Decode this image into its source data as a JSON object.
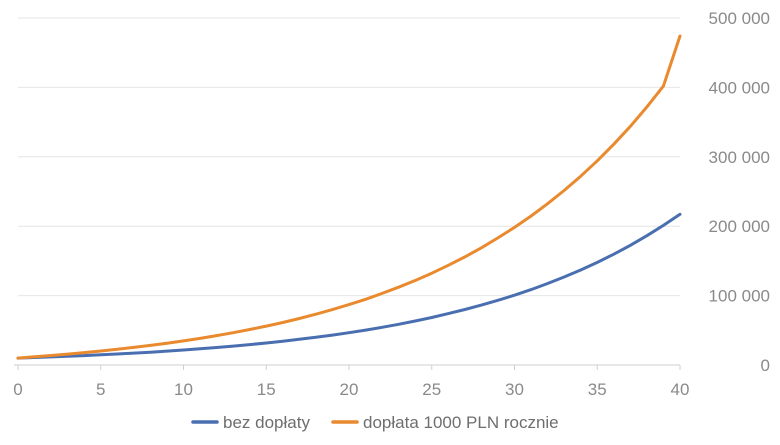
{
  "chart_data": {
    "type": "line",
    "x": [
      0,
      1,
      2,
      3,
      4,
      5,
      6,
      7,
      8,
      9,
      10,
      11,
      12,
      13,
      14,
      15,
      16,
      17,
      18,
      19,
      20,
      21,
      22,
      23,
      24,
      25,
      26,
      27,
      28,
      29,
      30,
      31,
      32,
      33,
      34,
      35,
      36,
      37,
      38,
      39,
      40
    ],
    "series": [
      {
        "name": "bez dopłaty",
        "color": "#4a6fb0",
        "values": [
          10000,
          10800,
          11700,
          12600,
          13600,
          14700,
          15900,
          17100,
          18500,
          20000,
          21600,
          23300,
          25200,
          27200,
          29400,
          31700,
          34300,
          37000,
          40000,
          43100,
          46600,
          50300,
          54300,
          58700,
          63400,
          68500,
          74000,
          79900,
          86300,
          93200,
          100600,
          108700,
          117400,
          126800,
          136900,
          147900,
          159700,
          172500,
          186300,
          201100,
          217200
        ]
      },
      {
        "name": "dopłata 1000 PLN rocznie",
        "color": "#e98a2e",
        "values": [
          10000,
          11800,
          13700,
          15700,
          17800,
          20200,
          22700,
          25300,
          28200,
          31300,
          34700,
          38400,
          42300,
          46500,
          51100,
          56000,
          61300,
          67000,
          73200,
          79800,
          87000,
          94700,
          103100,
          112100,
          121800,
          132300,
          143600,
          155800,
          168900,
          183100,
          198300,
          214700,
          232400,
          251500,
          272100,
          294300,
          318200,
          344000,
          371900,
          401900,
          474000
        ]
      }
    ],
    "y_ticks": [
      "0",
      "100 000",
      "200 000",
      "300 000",
      "400 000",
      "500 000"
    ],
    "x_ticks": [
      "0",
      "5",
      "10",
      "15",
      "20",
      "25",
      "30",
      "35",
      "40"
    ],
    "ylim": [
      0,
      500000
    ],
    "xlim": [
      0,
      40
    ],
    "y_axis_position": "right",
    "grid": true,
    "legend_position": "bottom"
  }
}
